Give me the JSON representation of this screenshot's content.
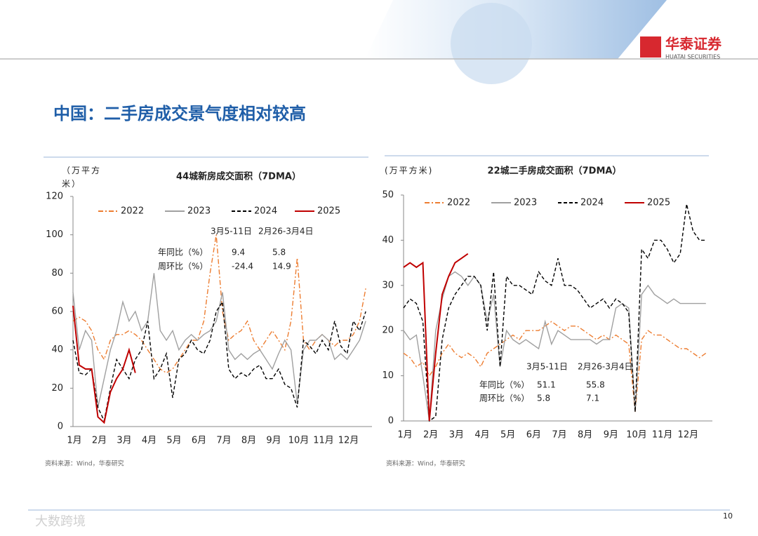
{
  "slide": {
    "logo": "华泰证券",
    "logo_sub": "HUATAI SECURITIES",
    "title": "中国：二手房成交景气度相对较高",
    "page_number": "10",
    "watermark": "大数跨境"
  },
  "chart_data": [
    {
      "type": "line",
      "title": "44城新房成交面积（7DMA）",
      "y_label": "（万平方米）",
      "source": "资料来源：Wind，华泰研究",
      "categories": [
        "1月",
        null,
        null,
        null,
        "2月",
        null,
        null,
        null,
        "3月",
        null,
        null,
        null,
        "4月",
        null,
        null,
        null,
        "5月",
        null,
        null,
        null,
        "6月",
        null,
        null,
        null,
        "7月",
        null,
        null,
        null,
        "8月",
        null,
        null,
        null,
        "9月",
        null,
        null,
        null,
        "10月",
        null,
        null,
        null,
        "11月",
        null,
        null,
        null,
        "12月",
        null,
        null,
        null
      ],
      "ylim": [
        0,
        120
      ],
      "yticks": [
        0,
        20,
        40,
        60,
        80,
        100,
        120
      ],
      "legend": "top",
      "series": [
        {
          "name": "2022",
          "color": "#ed7d31",
          "dash": "dashdot",
          "values": [
            55,
            57,
            55,
            50,
            40,
            35,
            45,
            48,
            48,
            50,
            48,
            45,
            40,
            35,
            30,
            28,
            30,
            35,
            40,
            45,
            45,
            55,
            80,
            100,
            60,
            45,
            48,
            50,
            55,
            45,
            40,
            45,
            50,
            45,
            40,
            55,
            88,
            45,
            40,
            45,
            48,
            45,
            42,
            45,
            45,
            48,
            55,
            72
          ]
        },
        {
          "name": "2023",
          "color": "#a0a0a0",
          "dash": "solid",
          "values": [
            70,
            40,
            50,
            45,
            10,
            25,
            40,
            50,
            65,
            55,
            60,
            50,
            55,
            80,
            50,
            45,
            50,
            40,
            45,
            48,
            45,
            48,
            50,
            55,
            70,
            40,
            35,
            38,
            35,
            38,
            40,
            35,
            30,
            38,
            45,
            40,
            12,
            40,
            45,
            45,
            48,
            45,
            35,
            38,
            35,
            40,
            45,
            55
          ]
        },
        {
          "name": "2024",
          "color": "#000000",
          "dash": "dashed",
          "values": [
            45,
            28,
            27,
            30,
            10,
            3,
            20,
            35,
            30,
            25,
            35,
            40,
            55,
            25,
            30,
            38,
            15,
            35,
            38,
            45,
            40,
            38,
            45,
            60,
            65,
            30,
            25,
            28,
            26,
            30,
            32,
            25,
            25,
            30,
            22,
            20,
            10,
            45,
            42,
            38,
            45,
            40,
            55,
            42,
            38,
            55,
            50,
            60
          ]
        },
        {
          "name": "2025",
          "color": "#c00000",
          "dash": "solid",
          "values": [
            63,
            32,
            30,
            30,
            5,
            2,
            18,
            25,
            30,
            40,
            28,
            null,
            null,
            null,
            null,
            null,
            null,
            null,
            null,
            null,
            null,
            null,
            null,
            null,
            null,
            null,
            null,
            null,
            null,
            null,
            null,
            null,
            null,
            null,
            null,
            null,
            null,
            null,
            null,
            null,
            null,
            null,
            null,
            null,
            null,
            null,
            null,
            null
          ]
        }
      ],
      "annotation_table": {
        "headers": [
          "3月5-11日",
          "2月26-3月4日"
        ],
        "rows": [
          {
            "label": "年同比（%）",
            "values": [
              "9.4",
              "5.8"
            ]
          },
          {
            "label": "周环比（%）",
            "values": [
              "-24.4",
              "14.9"
            ]
          }
        ]
      }
    },
    {
      "type": "line",
      "title": "22城二手房成交面积（7DMA）",
      "y_label": "(万平方米)",
      "source": "资料来源：Wind，华泰研究",
      "categories": [
        "1月",
        null,
        null,
        null,
        "2月",
        null,
        null,
        null,
        "3月",
        null,
        null,
        null,
        "4月",
        null,
        null,
        null,
        "5月",
        null,
        null,
        null,
        "6月",
        null,
        null,
        null,
        "7月",
        null,
        null,
        null,
        "8月",
        null,
        null,
        null,
        "9月",
        null,
        null,
        null,
        "10月",
        null,
        null,
        null,
        "11月",
        null,
        null,
        null,
        "12月",
        null,
        null,
        null
      ],
      "ylim": [
        0,
        50
      ],
      "yticks": [
        0,
        10,
        20,
        30,
        40,
        50
      ],
      "legend": "top",
      "series": [
        {
          "name": "2022",
          "color": "#ed7d31",
          "dash": "dashdot",
          "values": [
            15,
            14,
            12,
            13,
            10,
            12,
            15,
            17,
            15,
            14,
            15,
            14,
            12,
            15,
            16,
            17,
            18,
            19,
            18,
            20,
            20,
            20,
            21,
            22,
            21,
            20,
            21,
            21,
            20,
            19,
            18,
            19,
            18,
            19,
            18,
            17,
            2,
            18,
            20,
            19,
            19,
            18,
            17,
            16,
            16,
            15,
            14,
            15
          ]
        },
        {
          "name": "2023",
          "color": "#a0a0a0",
          "dash": "solid",
          "values": [
            20,
            18,
            19,
            10,
            0,
            20,
            27,
            32,
            33,
            32,
            30,
            32,
            30,
            22,
            28,
            12,
            20,
            18,
            17,
            18,
            17,
            16,
            22,
            17,
            20,
            19,
            18,
            18,
            18,
            18,
            17,
            18,
            18,
            25,
            26,
            25,
            2,
            28,
            30,
            28,
            27,
            26,
            27,
            26,
            26,
            26,
            26,
            26
          ]
        },
        {
          "name": "2024",
          "color": "#000000",
          "dash": "dashed",
          "values": [
            25,
            27,
            26,
            22,
            0,
            1,
            18,
            25,
            28,
            30,
            32,
            32,
            30,
            20,
            33,
            12,
            32,
            30,
            30,
            29,
            28,
            33,
            31,
            30,
            36,
            30,
            30,
            29,
            27,
            25,
            26,
            27,
            25,
            27,
            26,
            24,
            2,
            38,
            36,
            40,
            40,
            38,
            35,
            37,
            48,
            42,
            40,
            40
          ]
        },
        {
          "name": "2025",
          "color": "#c00000",
          "dash": "solid",
          "values": [
            34,
            35,
            34,
            35,
            0,
            15,
            28,
            32,
            35,
            36,
            37,
            null,
            null,
            null,
            null,
            null,
            null,
            null,
            null,
            null,
            null,
            null,
            null,
            null,
            null,
            null,
            null,
            null,
            null,
            null,
            null,
            null,
            null,
            null,
            null,
            null,
            null,
            null,
            null,
            null,
            null,
            null,
            null,
            null,
            null,
            null,
            null,
            null
          ]
        }
      ],
      "annotation_table": {
        "headers": [
          "3月5-11日",
          "2月26-3月4日"
        ],
        "rows": [
          {
            "label": "年同比（%）",
            "values": [
              "51.1",
              "55.8"
            ]
          },
          {
            "label": "周环比（%）",
            "values": [
              "5.8",
              "7.1"
            ]
          }
        ]
      }
    }
  ]
}
